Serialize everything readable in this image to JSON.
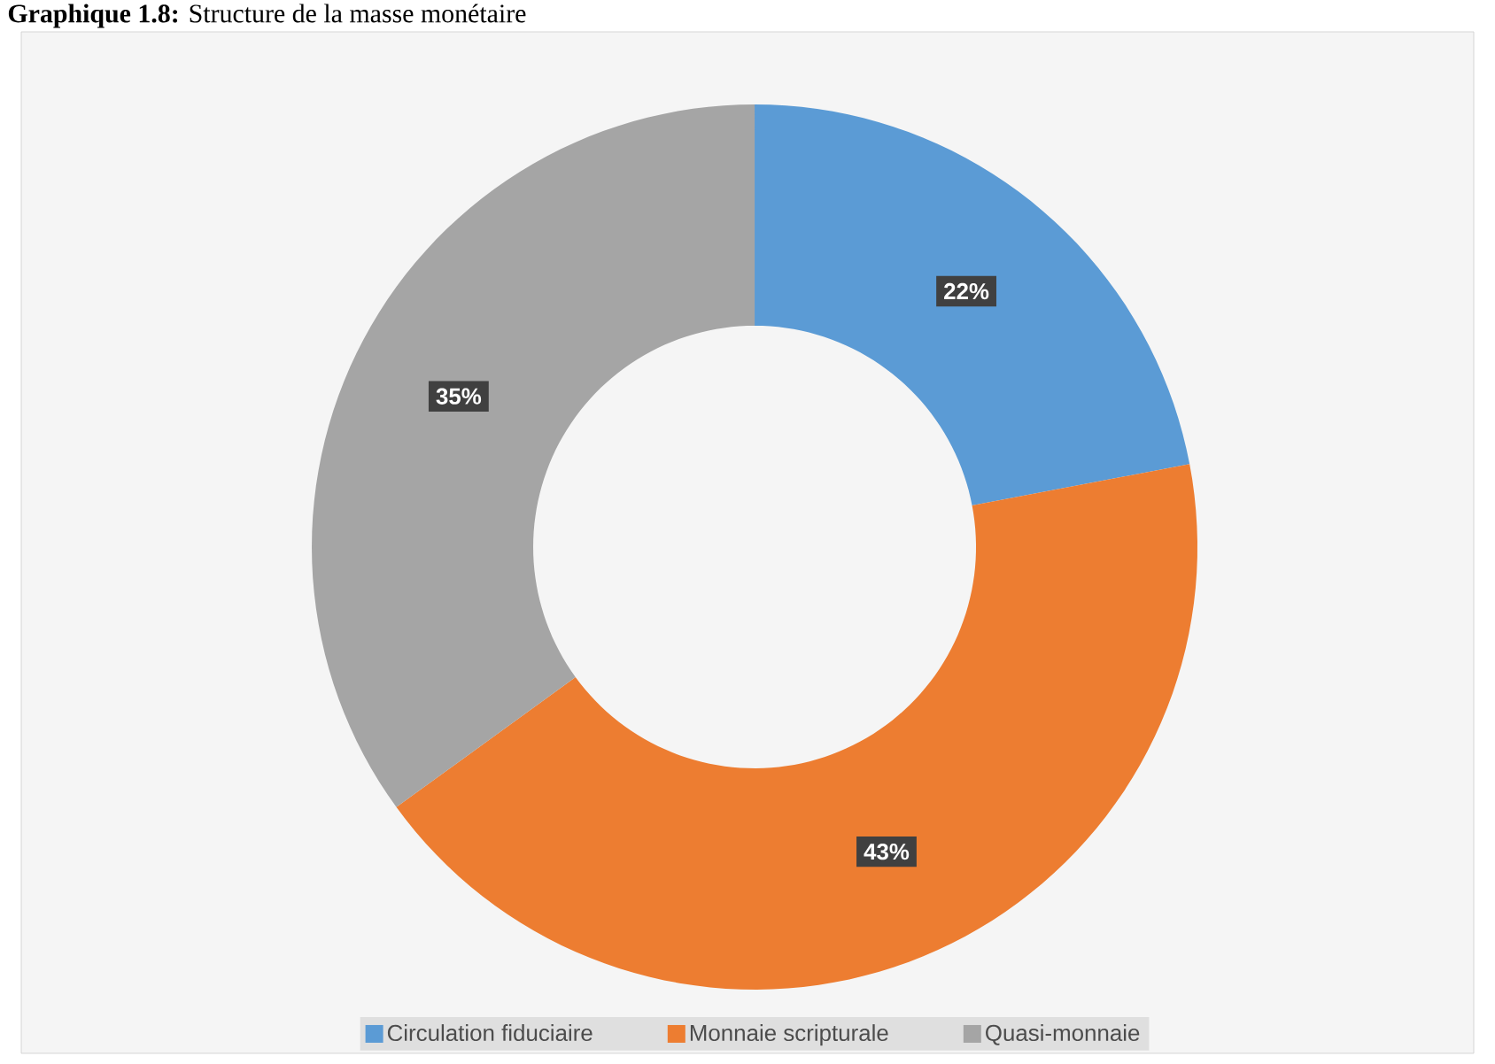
{
  "chart_data": {
    "type": "donut",
    "title": "**Graphique 1.8:** Structure de la masse monétaire",
    "categories": [
      "Circulation fiduciaire",
      "Monnaie scripturale",
      "Quasi-monnaie"
    ],
    "values": [
      22,
      43,
      35
    ],
    "colors": [
      "#5b9bd5",
      "#ed7d31",
      "#a5a5a5"
    ],
    "value_labels": [
      "22%",
      "43%",
      "35%"
    ],
    "legend": "bottom"
  }
}
